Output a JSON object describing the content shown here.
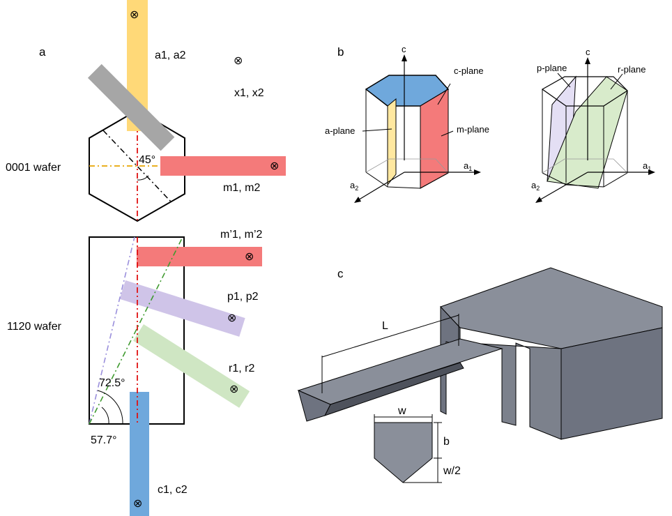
{
  "panels": {
    "a": "a",
    "b": "b",
    "c": "c"
  },
  "panel_a": {
    "wafer_top_label": "0001 wafer",
    "wafer_bottom_label": "1120 wafer",
    "beam_labels": {
      "a": "a1, a2",
      "x": "x1, x2",
      "m": "m1, m2",
      "m_prime": "m’1, m’2",
      "p": "p1, p2",
      "r": "r1, r2",
      "c": "c1, c2"
    },
    "angles": {
      "hex": "45°",
      "p_angle": "72.5°",
      "r_angle": "57.7°"
    },
    "cross_symbol": "⊗"
  },
  "panel_b": {
    "left": {
      "c_axis": "c",
      "c_plane": "c-plane",
      "a_plane": "a-plane",
      "m_plane": "m-plane",
      "a1": "a",
      "a1_sub": "1",
      "a2": "a",
      "a2_sub": "2"
    },
    "right": {
      "c_axis": "c",
      "p_plane": "p-plane",
      "r_plane": "r-plane",
      "a1": "a",
      "a1_sub": "1",
      "a2": "a",
      "a2_sub": "2"
    }
  },
  "panel_c": {
    "length": "L",
    "width": "w",
    "thickness": "b",
    "half_width": "w/2"
  },
  "colors": {
    "yellow": "#FFD978",
    "gray": "#A6A6A6",
    "red": "#F47A7A",
    "violet": "#CFC4E8",
    "green": "#CFE6C3",
    "blue": "#6FA8DC",
    "steel_top": "#8A8F9A",
    "steel_front": "#6E7380",
    "steel_dark": "#4E525C"
  }
}
